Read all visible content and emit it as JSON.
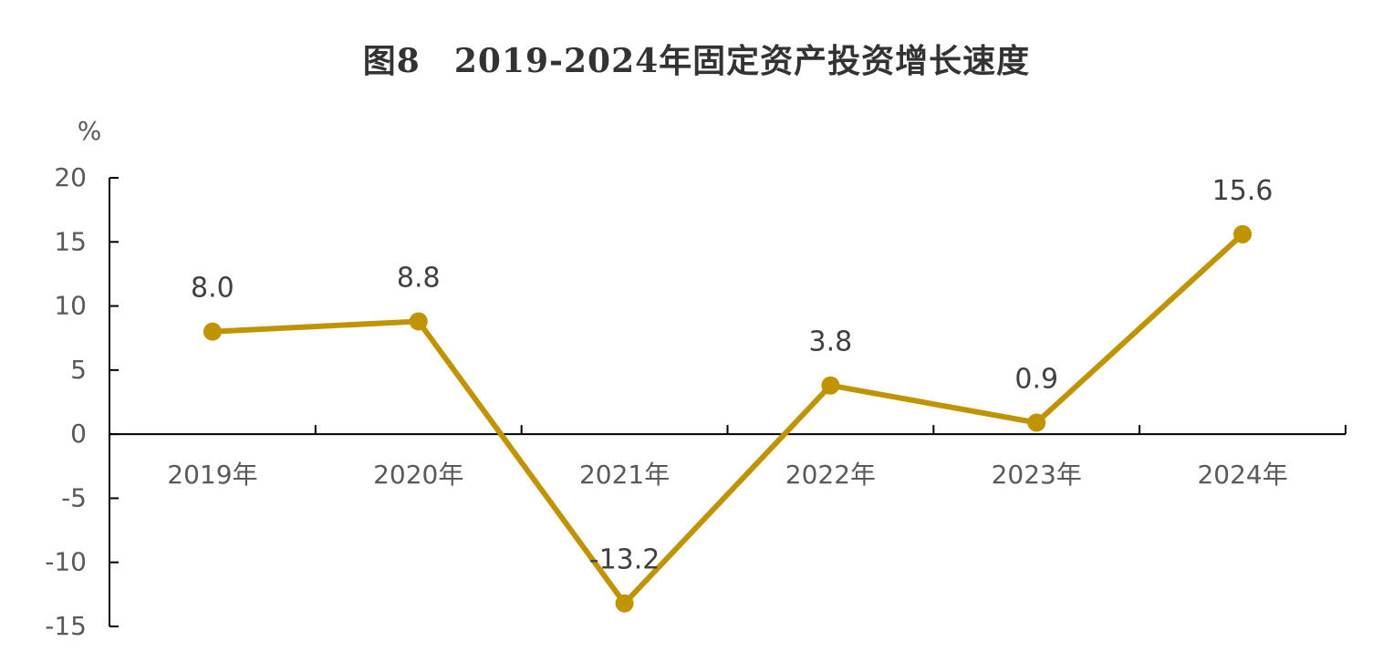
{
  "chart_data": {
    "type": "line",
    "title": "图8　2019-2024年固定资产投资增长速度",
    "ylabel": "%",
    "xlabel": "",
    "categories": [
      "2019年",
      "2020年",
      "2021年",
      "2022年",
      "2023年",
      "2024年"
    ],
    "series": [
      {
        "values": [
          8.0,
          8.8,
          -13.2,
          3.8,
          0.9,
          15.6
        ]
      }
    ],
    "data_labels": [
      "8.0",
      "8.8",
      "-13.2",
      "3.8",
      "0.9",
      "15.6"
    ],
    "ylim": [
      -15,
      20
    ],
    "yticks": [
      20,
      15,
      10,
      5,
      0,
      -5,
      -10,
      -15
    ],
    "grid": false,
    "legend": "none",
    "colors": {
      "line": "#C09400",
      "axis": "#000000",
      "text": "#595959"
    }
  }
}
